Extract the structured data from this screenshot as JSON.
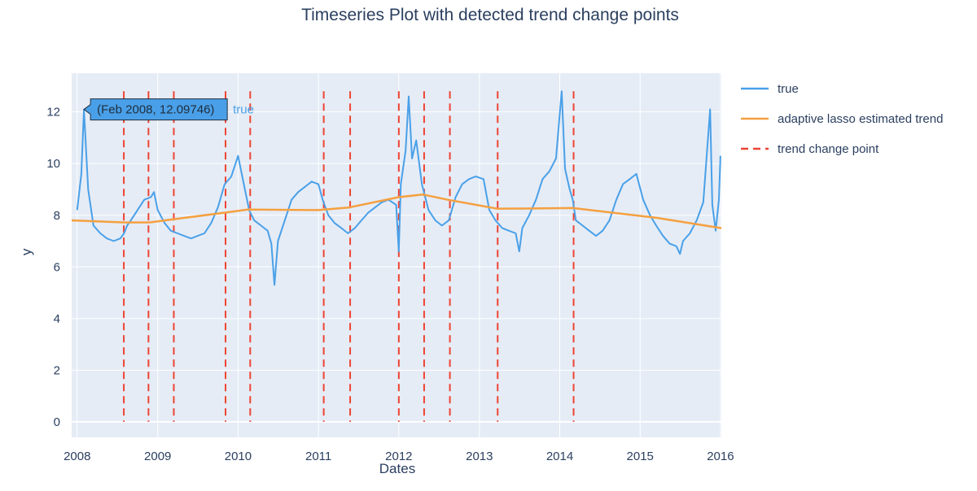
{
  "chart_data": {
    "type": "line",
    "title": "Timeseries Plot with detected trend change points",
    "xlabel": "Dates",
    "ylabel": "y",
    "x_range": [
      "2007-12-07",
      "2016-01-05"
    ],
    "ylim": [
      -0.6,
      13.5
    ],
    "xtick_labels": [
      "2008",
      "2009",
      "2010",
      "2011",
      "2012",
      "2013",
      "2014",
      "2015",
      "2016"
    ],
    "ytick_values": [
      0,
      2,
      4,
      6,
      8,
      10,
      12
    ],
    "grid": true,
    "legend_position": "right",
    "legend": [
      {
        "name": "true",
        "color": "#4aa0e8",
        "style": "solid"
      },
      {
        "name": "adaptive lasso estimated trend",
        "color": "#f5a040",
        "style": "solid"
      },
      {
        "name": "trend change point",
        "color": "#ee4433",
        "style": "dashed"
      }
    ],
    "series": [
      {
        "name": "true",
        "color": "#4aa0e8",
        "points": [
          [
            "2008-01-01",
            8.2
          ],
          [
            "2008-01-20",
            9.6
          ],
          [
            "2008-02-01",
            12.09746
          ],
          [
            "2008-02-20",
            9.0
          ],
          [
            "2008-03-15",
            7.6
          ],
          [
            "2008-04-15",
            7.3
          ],
          [
            "2008-05-15",
            7.1
          ],
          [
            "2008-06-15",
            7.0
          ],
          [
            "2008-07-15",
            7.1
          ],
          [
            "2008-08-01",
            7.3
          ],
          [
            "2008-08-15",
            7.6
          ],
          [
            "2008-09-01",
            7.8
          ],
          [
            "2008-10-01",
            8.2
          ],
          [
            "2008-11-01",
            8.6
          ],
          [
            "2008-12-01",
            8.7
          ],
          [
            "2008-12-15",
            8.9
          ],
          [
            "2009-01-01",
            8.2
          ],
          [
            "2009-02-01",
            7.7
          ],
          [
            "2009-03-01",
            7.4
          ],
          [
            "2009-04-01",
            7.3
          ],
          [
            "2009-05-01",
            7.2
          ],
          [
            "2009-06-01",
            7.1
          ],
          [
            "2009-07-01",
            7.2
          ],
          [
            "2009-08-01",
            7.3
          ],
          [
            "2009-09-01",
            7.7
          ],
          [
            "2009-10-01",
            8.3
          ],
          [
            "2009-11-01",
            9.2
          ],
          [
            "2009-12-01",
            9.5
          ],
          [
            "2010-01-01",
            10.3
          ],
          [
            "2010-02-01",
            9.0
          ],
          [
            "2010-02-20",
            8.2
          ],
          [
            "2010-03-15",
            7.8
          ],
          [
            "2010-04-15",
            7.6
          ],
          [
            "2010-05-15",
            7.4
          ],
          [
            "2010-06-01",
            6.9
          ],
          [
            "2010-06-15",
            5.3
          ],
          [
            "2010-07-01",
            7.0
          ],
          [
            "2010-08-01",
            7.8
          ],
          [
            "2010-09-01",
            8.6
          ],
          [
            "2010-10-01",
            8.9
          ],
          [
            "2010-11-01",
            9.1
          ],
          [
            "2010-12-01",
            9.3
          ],
          [
            "2011-01-01",
            9.2
          ],
          [
            "2011-01-20",
            8.6
          ],
          [
            "2011-02-15",
            8.0
          ],
          [
            "2011-03-15",
            7.7
          ],
          [
            "2011-04-15",
            7.5
          ],
          [
            "2011-05-15",
            7.3
          ],
          [
            "2011-06-15",
            7.5
          ],
          [
            "2011-07-15",
            7.8
          ],
          [
            "2011-08-15",
            8.1
          ],
          [
            "2011-09-15",
            8.3
          ],
          [
            "2011-10-15",
            8.5
          ],
          [
            "2011-11-15",
            8.6
          ],
          [
            "2011-12-20",
            8.4
          ],
          [
            "2012-01-01",
            6.6
          ],
          [
            "2012-01-10",
            9.2
          ],
          [
            "2012-02-01",
            10.5
          ],
          [
            "2012-02-15",
            12.6
          ],
          [
            "2012-03-01",
            10.2
          ],
          [
            "2012-03-20",
            10.9
          ],
          [
            "2012-04-15",
            9.2
          ],
          [
            "2012-05-15",
            8.2
          ],
          [
            "2012-06-15",
            7.8
          ],
          [
            "2012-07-15",
            7.6
          ],
          [
            "2012-08-15",
            7.8
          ],
          [
            "2012-09-15",
            8.7
          ],
          [
            "2012-10-15",
            9.2
          ],
          [
            "2012-11-15",
            9.4
          ],
          [
            "2012-12-15",
            9.5
          ],
          [
            "2013-01-20",
            9.4
          ],
          [
            "2013-02-15",
            8.2
          ],
          [
            "2013-03-15",
            7.8
          ],
          [
            "2013-04-15",
            7.5
          ],
          [
            "2013-05-15",
            7.4
          ],
          [
            "2013-06-15",
            7.3
          ],
          [
            "2013-07-01",
            6.6
          ],
          [
            "2013-07-15",
            7.5
          ],
          [
            "2013-08-15",
            8.0
          ],
          [
            "2013-09-15",
            8.6
          ],
          [
            "2013-10-15",
            9.4
          ],
          [
            "2013-11-15",
            9.7
          ],
          [
            "2013-12-15",
            10.2
          ],
          [
            "2014-01-10",
            12.8
          ],
          [
            "2014-01-25",
            9.8
          ],
          [
            "2014-02-15",
            9.0
          ],
          [
            "2014-03-01",
            8.6
          ],
          [
            "2014-03-15",
            7.8
          ],
          [
            "2014-04-15",
            7.6
          ],
          [
            "2014-05-15",
            7.4
          ],
          [
            "2014-06-15",
            7.2
          ],
          [
            "2014-07-15",
            7.4
          ],
          [
            "2014-08-15",
            7.8
          ],
          [
            "2014-09-15",
            8.6
          ],
          [
            "2014-10-15",
            9.2
          ],
          [
            "2014-11-15",
            9.4
          ],
          [
            "2014-12-15",
            9.6
          ],
          [
            "2015-01-15",
            8.6
          ],
          [
            "2015-02-15",
            8.0
          ],
          [
            "2015-03-15",
            7.6
          ],
          [
            "2015-04-15",
            7.2
          ],
          [
            "2015-05-15",
            6.9
          ],
          [
            "2015-06-15",
            6.8
          ],
          [
            "2015-07-01",
            6.5
          ],
          [
            "2015-07-15",
            7.0
          ],
          [
            "2015-08-15",
            7.3
          ],
          [
            "2015-09-15",
            7.8
          ],
          [
            "2015-10-15",
            8.5
          ],
          [
            "2015-11-15",
            12.1
          ],
          [
            "2015-11-25",
            8.4
          ],
          [
            "2015-12-10",
            7.4
          ],
          [
            "2015-12-25",
            8.6
          ],
          [
            "2016-01-01",
            10.3
          ]
        ]
      },
      {
        "name": "adaptive lasso estimated trend",
        "color": "#f5a040",
        "points": [
          [
            "2007-12-07",
            7.8
          ],
          [
            "2008-08-01",
            7.72
          ],
          [
            "2008-11-25",
            7.72
          ],
          [
            "2009-03-20",
            7.85
          ],
          [
            "2009-11-01",
            8.1
          ],
          [
            "2010-02-15",
            8.22
          ],
          [
            "2011-01-01",
            8.2
          ],
          [
            "2011-05-20",
            8.3
          ],
          [
            "2012-01-01",
            8.7
          ],
          [
            "2012-04-20",
            8.8
          ],
          [
            "2012-08-10",
            8.6
          ],
          [
            "2013-03-25",
            8.25
          ],
          [
            "2014-03-01",
            8.28
          ],
          [
            "2015-03-15",
            7.9
          ],
          [
            "2016-01-05",
            7.5
          ]
        ]
      }
    ],
    "change_points": [
      "2008-07-31",
      "2008-11-20",
      "2009-03-15",
      "2009-11-05",
      "2010-02-25",
      "2011-01-25",
      "2011-05-25",
      "2012-01-01",
      "2012-04-25",
      "2012-08-20",
      "2013-03-25",
      "2014-03-05"
    ],
    "hover_label": {
      "text": "(Feb 2008, 12.09746)",
      "series_name": "true",
      "x": "2008-02-01",
      "y": 12.09746
    }
  }
}
